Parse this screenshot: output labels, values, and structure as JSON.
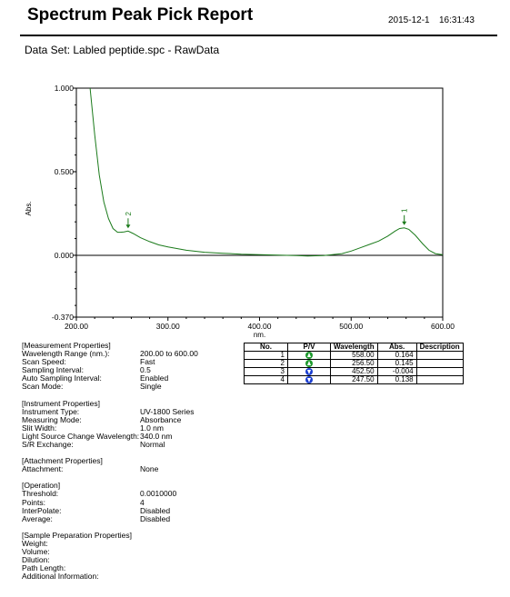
{
  "report": {
    "title": "Spectrum Peak Pick Report",
    "date": "2015-12-1",
    "time": "16:31:43",
    "dataset": "Data Set: Labled peptide.spc - RawData"
  },
  "chart_data": {
    "type": "line",
    "xlabel": "nm.",
    "ylabel": "Abs.",
    "xlim": [
      200,
      600
    ],
    "ylim": [
      -0.37,
      1.0
    ],
    "xticks": [
      "200.00",
      "300.00",
      "400.00",
      "500.00",
      "600.00"
    ],
    "yticks": [
      "1.000",
      "0.500",
      "0.000",
      "-0.370"
    ],
    "line_color": "#1a7a1a",
    "series": [
      {
        "x": [
          215,
          220,
          225,
          230,
          235,
          240,
          245,
          248,
          252,
          256.5,
          262,
          270,
          280,
          290,
          300,
          320,
          340,
          360,
          380,
          400,
          420,
          440,
          452.5,
          470,
          490,
          500,
          510,
          520,
          530,
          540,
          548,
          553,
          558,
          563,
          570,
          578,
          585,
          592,
          600
        ],
        "y": [
          1.0,
          0.72,
          0.48,
          0.32,
          0.22,
          0.16,
          0.138,
          0.138,
          0.14,
          0.145,
          0.13,
          0.105,
          0.082,
          0.062,
          0.05,
          0.03,
          0.018,
          0.012,
          0.007,
          0.004,
          0.001,
          -0.002,
          -0.004,
          -0.002,
          0.01,
          0.025,
          0.045,
          0.065,
          0.085,
          0.115,
          0.145,
          0.16,
          0.164,
          0.155,
          0.12,
          0.07,
          0.03,
          0.01,
          0.003
        ]
      }
    ],
    "peak_markers": [
      {
        "label": "1",
        "x": 558.0,
        "y": 0.164
      },
      {
        "label": "2",
        "x": 256.5,
        "y": 0.145
      }
    ]
  },
  "properties": [
    {
      "header": "[Measurement Properties]",
      "rows": [
        {
          "k": "Wavelength Range (nm.):",
          "v": "200.00 to 600.00"
        },
        {
          "k": "Scan Speed:",
          "v": "Fast"
        },
        {
          "k": "Sampling Interval:",
          "v": "0.5"
        },
        {
          "k": "Auto Sampling Interval:",
          "v": "Enabled"
        },
        {
          "k": "Scan Mode:",
          "v": "Single"
        }
      ]
    },
    {
      "header": "[Instrument Properties]",
      "rows": [
        {
          "k": "Instrument Type:",
          "v": "UV-1800 Series"
        },
        {
          "k": "Measuring Mode:",
          "v": "Absorbance"
        },
        {
          "k": "Slit Width:",
          "v": "1.0 nm"
        },
        {
          "k": "Light Source Change Wavelength:",
          "v": "340.0 nm"
        },
        {
          "k": "S/R Exchange:",
          "v": "Normal"
        }
      ]
    },
    {
      "header": "[Attachment Properties]",
      "rows": [
        {
          "k": "Attachment:",
          "v": "None"
        }
      ]
    },
    {
      "header": "[Operation]",
      "rows": [
        {
          "k": "Threshold:",
          "v": "0.0010000"
        },
        {
          "k": "Points:",
          "v": "4"
        },
        {
          "k": "InterPolate:",
          "v": "Disabled"
        },
        {
          "k": "Average:",
          "v": "Disabled"
        }
      ]
    },
    {
      "header": "[Sample Preparation Properties]",
      "rows": [
        {
          "k": "Weight:",
          "v": ""
        },
        {
          "k": "Volume:",
          "v": ""
        },
        {
          "k": "Dilution:",
          "v": ""
        },
        {
          "k": "Path Length:",
          "v": ""
        },
        {
          "k": "Additional Information:",
          "v": ""
        }
      ]
    }
  ],
  "peak_table": {
    "headers": [
      "No.",
      "P/V",
      "Wavelength",
      "Abs.",
      "Description"
    ],
    "rows": [
      {
        "no": "1",
        "pv": "peak",
        "wavelength": "558.00",
        "abs": "0.164",
        "description": ""
      },
      {
        "no": "2",
        "pv": "peak",
        "wavelength": "256.50",
        "abs": "0.145",
        "description": ""
      },
      {
        "no": "3",
        "pv": "valley",
        "wavelength": "452.50",
        "abs": "-0.004",
        "description": ""
      },
      {
        "no": "4",
        "pv": "valley",
        "wavelength": "247.50",
        "abs": "0.138",
        "description": ""
      }
    ]
  }
}
